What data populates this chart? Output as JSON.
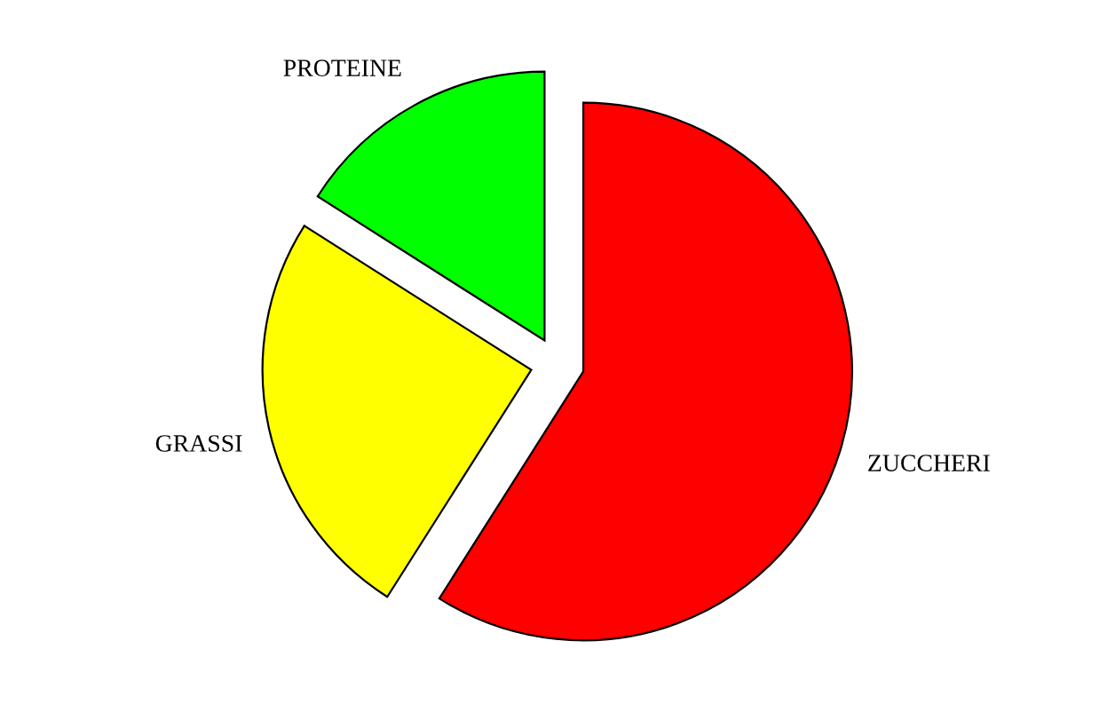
{
  "chart_data": {
    "type": "pie",
    "categories": [
      "ZUCCHERI",
      "GRASSI",
      "PROTEINE"
    ],
    "values": [
      59,
      25,
      16
    ],
    "colors": [
      "#ff0000",
      "#ffff00",
      "#00ff00"
    ]
  }
}
